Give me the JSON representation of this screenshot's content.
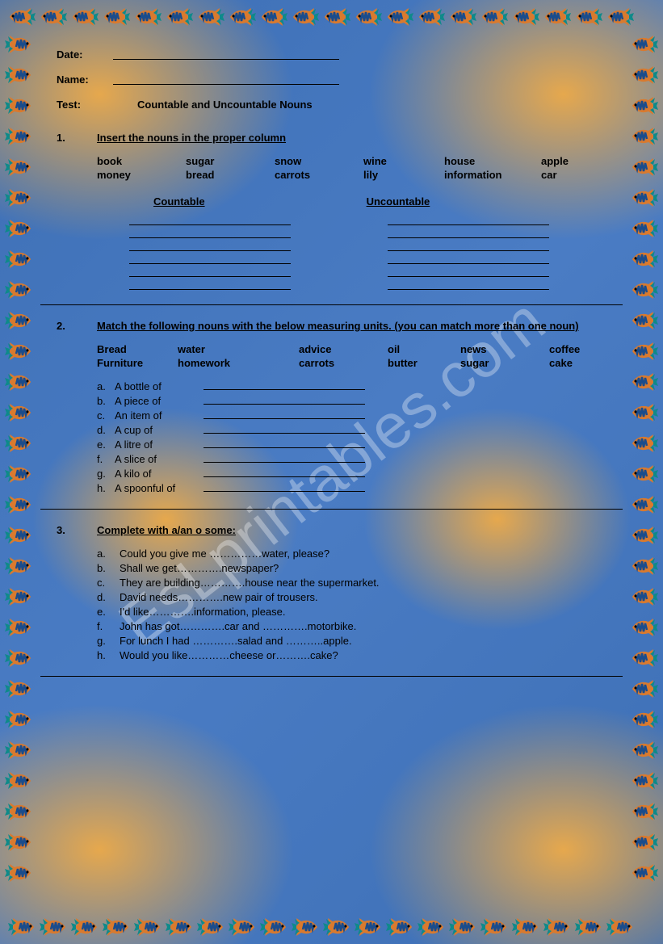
{
  "header": {
    "date_label": "Date:",
    "name_label": "Name:",
    "test_label": "Test:",
    "test_title": "Countable and Uncountable Nouns"
  },
  "section1": {
    "num": "1.",
    "title": "Insert the nouns in the proper column",
    "words": [
      "book",
      "sugar",
      "snow",
      "wine",
      "house",
      "apple",
      "money",
      "bread",
      "carrots",
      "lily",
      "information",
      "car"
    ],
    "col1_header": "Countable",
    "col2_header": "Uncountable",
    "line_count": 6
  },
  "section2": {
    "num": "2.",
    "title": "Match the following nouns with the below measuring units.  (you can match more than one noun)",
    "words": [
      "Bread",
      "water",
      "advice",
      "oil",
      "news",
      "coffee",
      "Furniture",
      "homework",
      "carrots",
      "butter",
      "sugar",
      "cake"
    ],
    "measures": [
      {
        "letter": "a.",
        "label": "A bottle of"
      },
      {
        "letter": "b.",
        "label": "A piece of"
      },
      {
        "letter": "c.",
        "label": "An item of"
      },
      {
        "letter": "d.",
        "label": "A cup of"
      },
      {
        "letter": "e.",
        "label": "A litre of"
      },
      {
        "letter": "f.",
        "label": "A slice of"
      },
      {
        "letter": "g.",
        "label": "A kilo of"
      },
      {
        "letter": "h.",
        "label": "A spoonful of"
      }
    ]
  },
  "section3": {
    "num": "3.",
    "title": "Complete with a/an o some:",
    "items": [
      {
        "letter": "a.",
        "text": "Could you give me ……………water, please?"
      },
      {
        "letter": "b.",
        "text": "Shall we get………….newspaper?"
      },
      {
        "letter": "c.",
        "text": "They are building………….house near the supermarket."
      },
      {
        "letter": "d.",
        "text": "David needs………….new pair of trousers."
      },
      {
        "letter": "e.",
        "text": "I'd like………….information, please."
      },
      {
        "letter": "f.",
        "text": "John has got………….car and ………….motorbike."
      },
      {
        "letter": "g.",
        "text": "For lunch I had ………….salad and ………..apple."
      },
      {
        "letter": "h.",
        "text": "Would you like…………cheese or……….cake?"
      }
    ]
  },
  "watermark": "EsLprintables.com",
  "fish": {
    "body_colors": [
      "#d97a2e",
      "#1a4c8c"
    ],
    "fin_color": "#0e8a8a",
    "tail_color": "#0e8a8a",
    "eye_color": "#000000"
  }
}
